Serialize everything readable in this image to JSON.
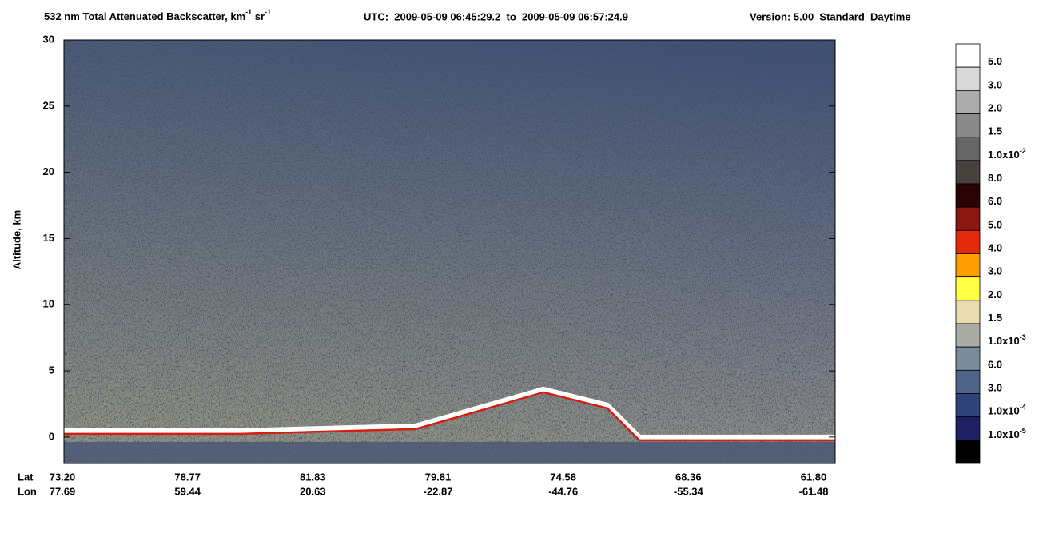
{
  "chart_data": {
    "type": "heatmap",
    "title": {
      "main": "532 nm Total Attenuated Backscatter, km",
      "sup1": "-1",
      "mid": " sr",
      "sup2": "-1",
      "utc": "UTC:  2009-05-09 06:45:29.2  to  2009-05-09 06:57:24.9",
      "version": "Version: 5.00  Standard  Daytime"
    },
    "ylabel": "Altitude, km",
    "ylim": [
      -2,
      30
    ],
    "yticks": [
      0,
      5,
      10,
      15,
      20,
      25,
      30
    ],
    "lat_name": "Lat",
    "lon_name": "Lon",
    "lat_labels": [
      "73.20",
      "78.77",
      "81.83",
      "79.81",
      "74.58",
      "68.36",
      "61.80"
    ],
    "lon_labels": [
      "77.69",
      "59.44",
      "20.63",
      "-22.87",
      "-44.76",
      "-55.34",
      "-61.48"
    ],
    "colorbar": {
      "colors": [
        "#ffffff",
        "#d8d8d8",
        "#acacac",
        "#8a8a8a",
        "#666666",
        "#48403c",
        "#2a0404",
        "#8a1612",
        "#e42a0c",
        "#ff9c00",
        "#ffff44",
        "#eadcb0",
        "#a8aca4",
        "#7a8c9c",
        "#4e6488",
        "#2e4278",
        "#1e2062",
        "#000000"
      ],
      "labels": [
        {
          "text": "5.0"
        },
        {
          "text": "3.0"
        },
        {
          "text": "2.0"
        },
        {
          "text": "1.5"
        },
        {
          "text": "1.0x10",
          "exp": "-2"
        },
        {
          "text": "8.0"
        },
        {
          "text": "6.0"
        },
        {
          "text": "5.0"
        },
        {
          "text": "4.0"
        },
        {
          "text": "3.0"
        },
        {
          "text": "2.0"
        },
        {
          "text": "1.5"
        },
        {
          "text": "1.0x10",
          "exp": "-3"
        },
        {
          "text": "6.0"
        },
        {
          "text": "3.0"
        },
        {
          "text": "1.0x10",
          "exp": "-4"
        },
        {
          "text": "1.0x10",
          "exp": "-5"
        }
      ]
    }
  }
}
